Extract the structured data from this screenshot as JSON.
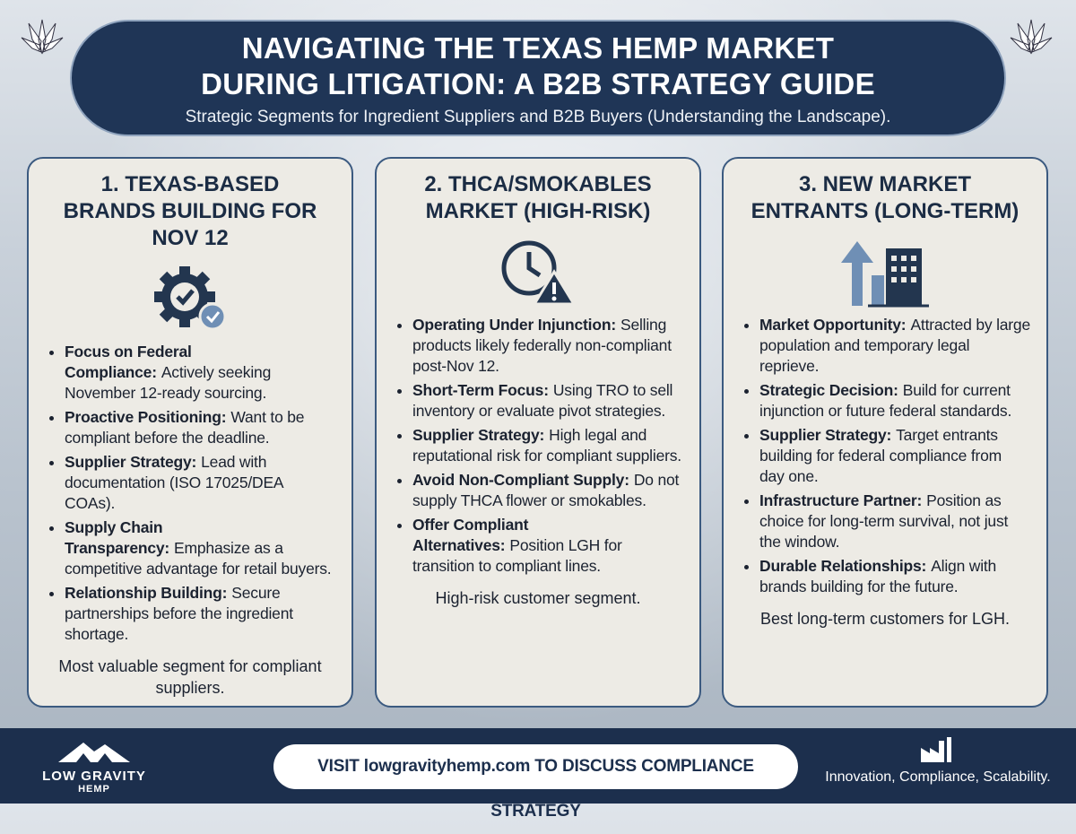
{
  "header": {
    "title": "NAVIGATING THE TEXAS HEMP MARKET DURING LITIGATION: A B2B STRATEGY GUIDE",
    "subtitle": "Strategic Segments for Ingredient Suppliers and B2B Buyers (Understanding the Landscape)."
  },
  "cards": [
    {
      "title": "1. TEXAS-BASED BRANDS BUILDING FOR NOV 12",
      "bullets": [
        {
          "label": "Focus on Federal Compliance:",
          "text": "Actively seeking November 12-ready sourcing."
        },
        {
          "label": "Proactive Positioning:",
          "text": "Want to be compliant before the deadline."
        },
        {
          "label": "Supplier Strategy:",
          "text": "Lead with documentation (ISO 17025/DEA COAs)."
        },
        {
          "label": "Supply Chain Transparency:",
          "text": "Emphasize as a competitive advantage for retail buyers."
        },
        {
          "label": "Relationship Building:",
          "text": "Secure partnerships before the ingredient shortage."
        }
      ],
      "note": "Most valuable segment for compliant suppliers."
    },
    {
      "title": "2. THCA/SMOKABLES MARKET (HIGH-RISK)",
      "bullets": [
        {
          "label": "Operating Under Injunction:",
          "text": "Selling products likely federally non-compliant post-Nov 12."
        },
        {
          "label": "Short-Term Focus:",
          "text": "Using TRO to sell inventory or evaluate pivot strategies."
        },
        {
          "label": "Supplier Strategy:",
          "text": "High legal and reputational risk for compliant suppliers."
        },
        {
          "label": "Avoid Non-Compliant Supply:",
          "text": "Do not supply THCA flower or smokables."
        },
        {
          "label": "Offer Compliant Alternatives:",
          "text": "Position LGH for transition to compliant lines."
        }
      ],
      "note": "High-risk customer segment."
    },
    {
      "title": "3. NEW MARKET ENTRANTS (LONG-TERM)",
      "bullets": [
        {
          "label": "Market Opportunity:",
          "text": "Attracted by large population and temporary legal reprieve."
        },
        {
          "label": "Strategic Decision:",
          "text": "Build for current injunction or future federal standards."
        },
        {
          "label": "Supplier Strategy:",
          "text": "Target entrants building for federal compliance from day one."
        },
        {
          "label": "Infrastructure Partner:",
          "text": "Position as choice for long-term survival, not just the window."
        },
        {
          "label": "Durable Relationships:",
          "text": "Align with brands building for the future."
        }
      ],
      "note": "Best long-term customers for LGH."
    }
  ],
  "footer": {
    "logo_name": "LOW GRAVITY",
    "logo_sub": "HEMP",
    "cta": "VISIT lowgravityhemp.com TO DISCUSS COMPLIANCE STRATEGY",
    "tagline": "Innovation, Compliance, Scalability."
  }
}
